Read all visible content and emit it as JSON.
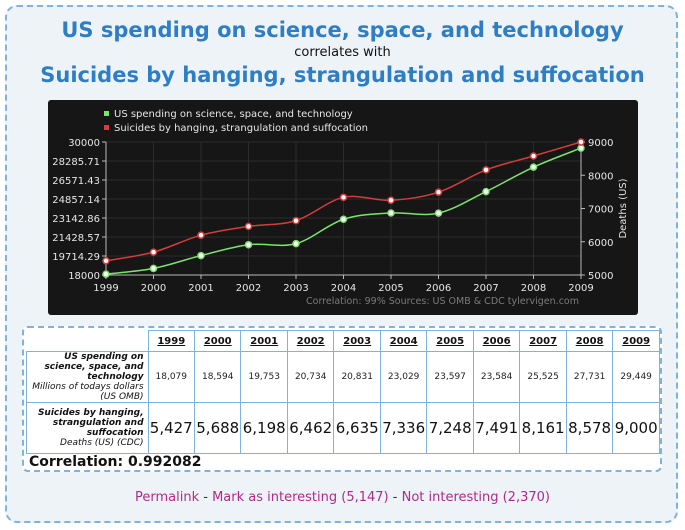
{
  "title_line1": "US spending on science, space, and technology",
  "title_connector": "correlates with",
  "title_line2": "Suicides by hanging, strangulation and suffocation",
  "footer_note": "Correlation: 99%   Sources: US OMB & CDC   tylervigen.com",
  "chart_data": {
    "type": "line",
    "x": [
      1999,
      2000,
      2001,
      2002,
      2003,
      2004,
      2005,
      2006,
      2007,
      2008,
      2009
    ],
    "series": [
      {
        "name": "US spending on science, space, and technology",
        "color": "#7de36f",
        "axis": "left",
        "values": [
          18079,
          18594,
          19753,
          20734,
          20831,
          23029,
          23597,
          23584,
          25525,
          27731,
          29449
        ]
      },
      {
        "name": "Suicides by hanging, strangulation and suffocation",
        "color": "#d63c3c",
        "axis": "right",
        "values": [
          5427,
          5688,
          6198,
          6462,
          6635,
          7336,
          7248,
          7491,
          8161,
          8578,
          9000
        ]
      }
    ],
    "y_left_ticks": [
      "30000",
      "28285.71",
      "26571.43",
      "24857.14",
      "23142.86",
      "21428.57",
      "19714.29",
      "18000"
    ],
    "y_left_range": [
      18000,
      30000
    ],
    "y_right_ticks": [
      "9000",
      "8000",
      "7000",
      "6000",
      "5000"
    ],
    "y_right_range": [
      5000,
      9000
    ],
    "y_right_label": "Deaths (US)",
    "legend_position": "top-left",
    "grid": true
  },
  "table": {
    "years": [
      "1999",
      "2000",
      "2001",
      "2002",
      "2003",
      "2004",
      "2005",
      "2006",
      "2007",
      "2008",
      "2009"
    ],
    "row1_label": "US spending on science, space, and technology",
    "row1_unit": "Millions of todays dollars (US OMB)",
    "row1_values": [
      "18,079",
      "18,594",
      "19,753",
      "20,734",
      "20,831",
      "23,029",
      "23,597",
      "23,584",
      "25,525",
      "27,731",
      "29,449"
    ],
    "row2_label": "Suicides by hanging, strangulation and suffocation",
    "row2_unit": "Deaths (US) (CDC)",
    "row2_values": [
      "5,427",
      "5,688",
      "6,198",
      "6,462",
      "6,635",
      "7,336",
      "7,248",
      "7,491",
      "8,161",
      "8,578",
      "9,000"
    ],
    "correlation": "Correlation: 0.992082"
  },
  "links": {
    "permalink": "Permalink",
    "separator": " - ",
    "mark_interesting": "Mark as interesting (5,147)",
    "not_interesting": "Not interesting (2,370)"
  }
}
